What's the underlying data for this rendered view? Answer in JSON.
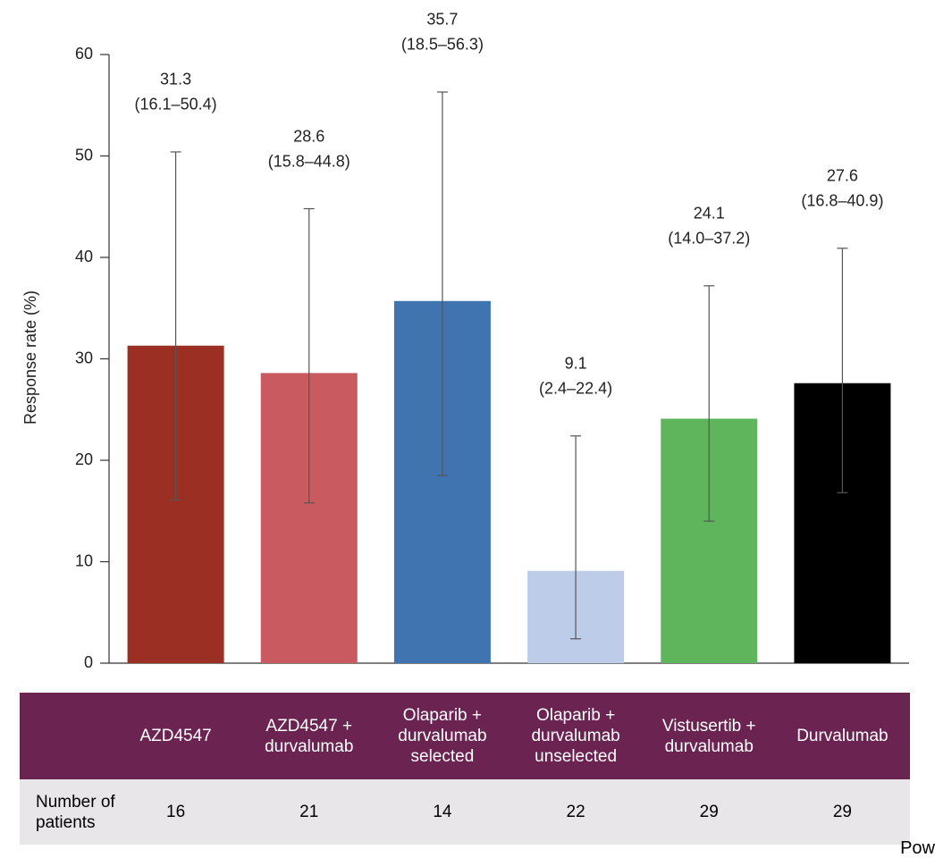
{
  "chart_data": {
    "type": "bar",
    "y_label": "Response rate (%)",
    "categories": [
      "AZD4547",
      "AZD4547 + durvalumab",
      "Olaparib + durvalumab selected",
      "Olaparib + durvalumab unselected",
      "Vistusertib + durvalumab",
      "Durvalumab"
    ],
    "values": [
      31.3,
      28.6,
      35.7,
      9.1,
      24.1,
      27.6
    ],
    "ci_low": [
      16.1,
      15.8,
      18.5,
      2.4,
      14.0,
      16.8
    ],
    "ci_high": [
      50.4,
      44.8,
      56.3,
      22.4,
      37.2,
      40.9
    ],
    "ci_labels": [
      "(16.1–50.4)",
      "(15.8–44.8)",
      "(18.5–56.3)",
      "(2.4–22.4)",
      "(14.0–37.2)",
      "(16.8–40.9)"
    ],
    "colors": [
      "#9b2f23",
      "#c95a5f",
      "#3f74b0",
      "#bccce9",
      "#5eb55b",
      "#000000"
    ],
    "ylim": [
      0,
      60
    ],
    "yticks": [
      0,
      10,
      20,
      30,
      40,
      50,
      60
    ],
    "grid": false
  },
  "table": {
    "row_label": "Number of patients",
    "counts": [
      16,
      21,
      14,
      22,
      29,
      29
    ]
  },
  "footer_fragment": "Pow"
}
